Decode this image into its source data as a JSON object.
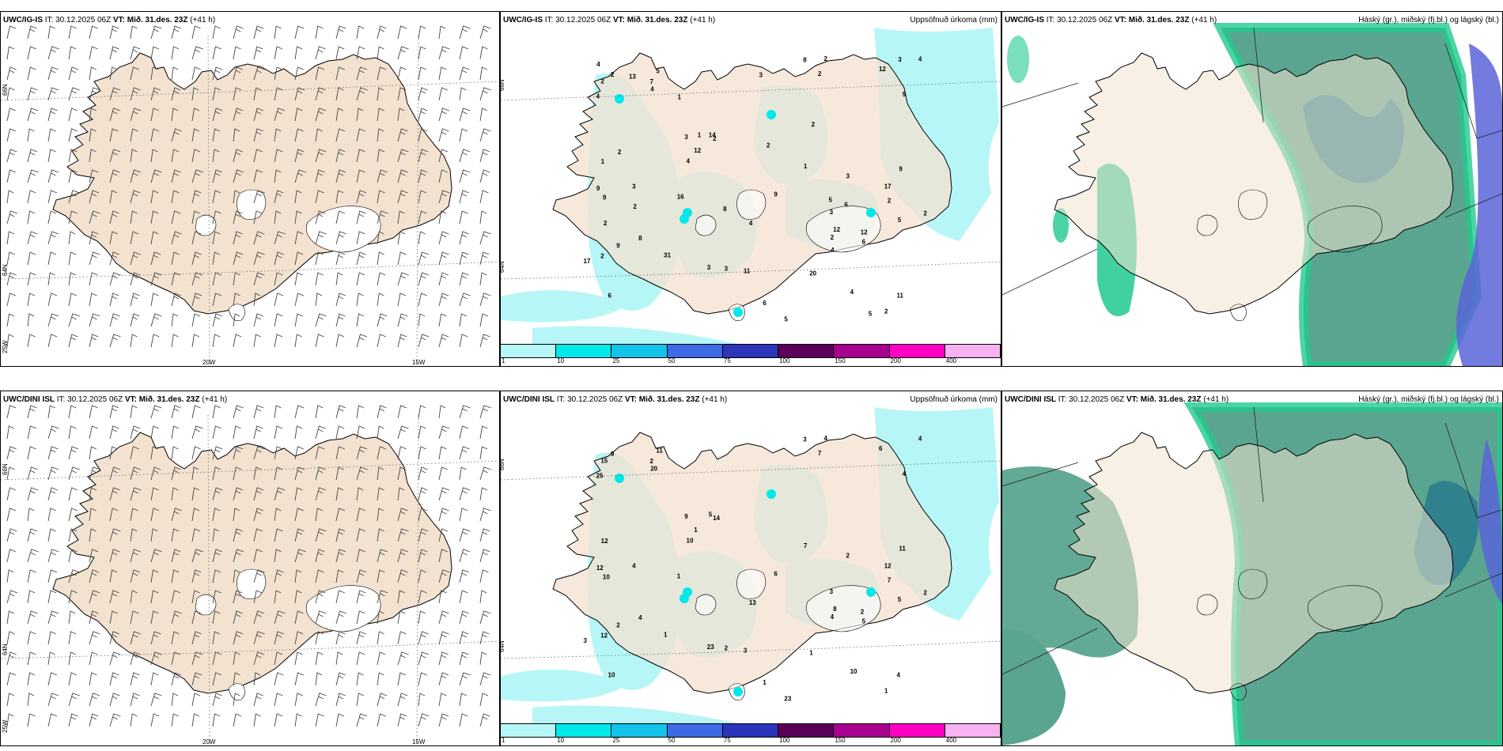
{
  "rows": [
    {
      "model": "UWC/IG-IS",
      "it_label": "IT:",
      "it": "30.12.2025 06Z",
      "vt_label": "VT:",
      "vt": "Mið. 31.des. 23Z",
      "lead": "(+41 h)"
    },
    {
      "model": "UWC/DINI ISL",
      "it_label": "IT:",
      "it": "30.12.2025 06Z",
      "vt_label": "VT:",
      "vt": "Mið. 31.des. 23Z",
      "lead": "(+41 h)"
    }
  ],
  "precip_title": "Uppsöfnuð úrkoma (mm)",
  "cloud_title": "Háský (gr.), miðský (fj.bl.) og lágský (bl.)",
  "wind_axis_labels": {
    "lon_20": "20W",
    "lon_15": "15W",
    "lat_66": "66N",
    "lat_64": "64N",
    "lon_25": "25W"
  },
  "precip_lat_labels": {
    "lat_66": "66N",
    "lat_64": "64N"
  },
  "legend": {
    "labels": [
      "1",
      "10",
      "25",
      "50",
      "75",
      "100",
      "150",
      "200",
      "400"
    ],
    "colors": [
      "#b7f6f6",
      "#00e8ea",
      "#12c3ea",
      "#3f6ae6",
      "#2b35ba",
      "#5b0058",
      "#a8008f",
      "#ff00c4",
      "#f7b2f2"
    ]
  },
  "colors": {
    "land": "#f3e2d0",
    "land_alt": "#efdccb",
    "ocean": "#ffffff",
    "precip_light": "#b7f6f6",
    "precip_mid": "#00e8ea",
    "cloud_low": "#5aa58f",
    "cloud_dense": "#2b7d8e",
    "cloud_green": "#20c98f",
    "cloud_blue": "#5a64d8",
    "cloud_pale": "#cdeed6"
  },
  "precip_values_top": [
    "3",
    "2",
    "6",
    "5",
    "2",
    "4",
    "2",
    "2",
    "3",
    "5",
    "4",
    "9",
    "2",
    "11",
    "3",
    "9",
    "4",
    "9",
    "14",
    "8",
    "4",
    "12",
    "4",
    "5",
    "8",
    "7",
    "12",
    "9",
    "4",
    "3",
    "6",
    "20",
    "12",
    "16",
    "17",
    "6",
    "2",
    "3",
    "11",
    "9",
    "9",
    "2",
    "2",
    "3",
    "12",
    "31",
    "17",
    "2",
    "1",
    "1",
    "2",
    "1",
    "3",
    "5",
    "4",
    "5",
    "2",
    "4",
    "2",
    "13",
    "6",
    "1",
    "2",
    "2",
    "3",
    "2",
    "8"
  ],
  "precip_values_bottom": [
    "3",
    "7",
    "10",
    "11",
    "14",
    "10",
    "12",
    "7",
    "9",
    "23",
    "25",
    "12",
    "15",
    "4",
    "23",
    "11",
    "13",
    "6",
    "5",
    "4",
    "4",
    "6",
    "10",
    "5",
    "3",
    "2",
    "8",
    "10",
    "20",
    "2",
    "1",
    "1",
    "1",
    "1",
    "12",
    "5",
    "4",
    "4",
    "3",
    "2",
    "4",
    "4",
    "1",
    "2",
    "2",
    "1",
    "3",
    "9",
    "7",
    "12",
    "2"
  ]
}
